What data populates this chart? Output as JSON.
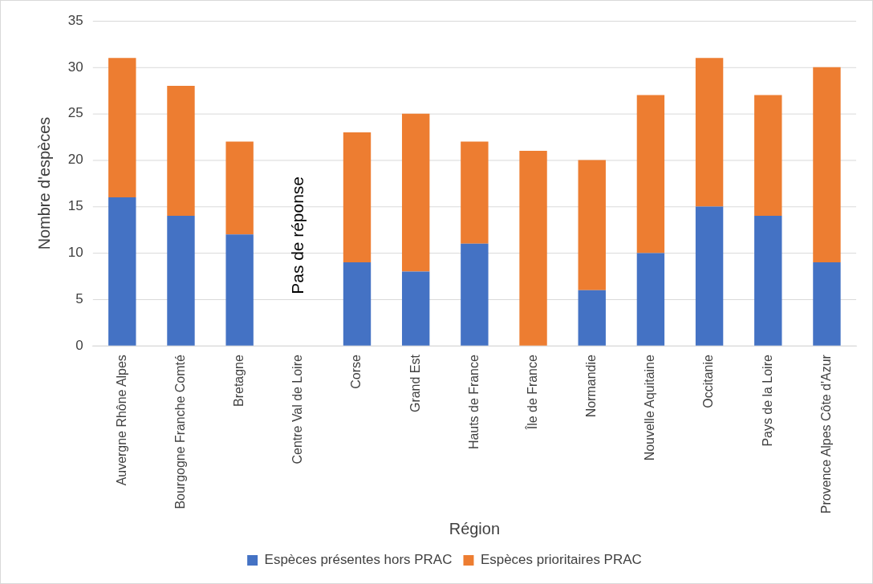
{
  "chart_data": {
    "type": "bar",
    "stacked": true,
    "xlabel": "Région",
    "ylabel": "Nombre d'espèces",
    "categories": [
      "Auvergne Rhône Alpes",
      "Bourgogne Franche Comté",
      "Bretagne",
      "Centre Val de Loire",
      "Corse",
      "Grand Est",
      "Hauts de France",
      "Île de France",
      "Normandie",
      "Nouvelle Aquitaine",
      "Occitanie",
      "Pays de la Loire",
      "Provence Alpes Côte d'Azur"
    ],
    "series": [
      {
        "name": "Espèces présentes hors PRAC",
        "color": "#4472c4",
        "values": [
          16,
          14,
          12,
          null,
          9,
          8,
          11,
          0,
          6,
          10,
          15,
          14,
          9
        ]
      },
      {
        "name": "Espèces prioritaires PRAC",
        "color": "#ed7d31",
        "values": [
          15,
          14,
          10,
          null,
          14,
          17,
          11,
          21,
          14,
          17,
          16,
          13,
          21
        ]
      }
    ],
    "ylim": [
      0,
      35
    ],
    "yticks": [
      0,
      5,
      10,
      15,
      20,
      25,
      30,
      35
    ],
    "grid": "y",
    "legend": "bottom",
    "annotations": [
      "Pas de réponse"
    ]
  }
}
